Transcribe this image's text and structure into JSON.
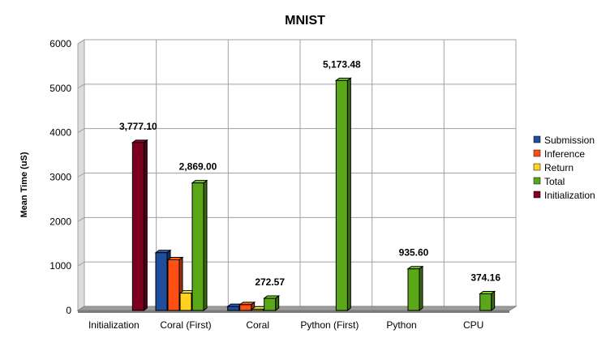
{
  "chart_data": {
    "type": "bar",
    "title": "MNIST",
    "xlabel": "",
    "ylabel": "Mean Time (uS)",
    "ylim": [
      0,
      6000
    ],
    "yticks": [
      0,
      1000,
      2000,
      3000,
      4000,
      5000,
      6000
    ],
    "grid": true,
    "legend_position": "right",
    "categories": [
      "Initialization",
      "Coral (First)",
      "Coral",
      "Python (First)",
      "Python",
      "CPU"
    ],
    "series": [
      {
        "name": "Submission",
        "color": "#1f4e9c",
        "values": [
          null,
          1300,
          90,
          null,
          null,
          null
        ]
      },
      {
        "name": "Inference",
        "color": "#ff4f12",
        "values": [
          null,
          1140,
          130,
          null,
          null,
          null
        ]
      },
      {
        "name": "Return",
        "color": "#ffd21f",
        "values": [
          null,
          390,
          30,
          null,
          null,
          null
        ]
      },
      {
        "name": "Total",
        "color": "#5aa81a",
        "values": [
          null,
          2869.0,
          272.57,
          5173.48,
          935.6,
          374.16
        ]
      },
      {
        "name": "Initialization",
        "color": "#7d0022",
        "values": [
          3777.1,
          null,
          null,
          null,
          null,
          null
        ]
      }
    ],
    "data_labels": [
      "3,777.10",
      "2,869.00",
      "272.57",
      "5,173.48",
      "935.60",
      "374.16"
    ]
  }
}
